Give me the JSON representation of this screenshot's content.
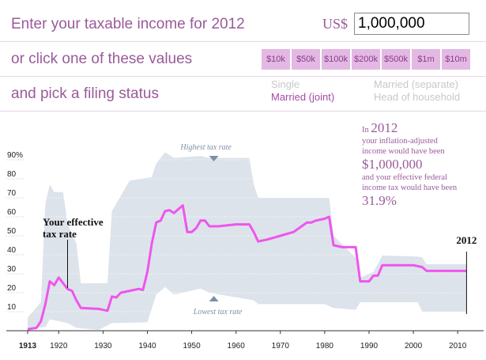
{
  "controls": {
    "prompt_income": "Enter your taxable income for 2012",
    "currency": "US$",
    "income_value": "1,000,000",
    "prompt_click": "or click one of these values",
    "presets": [
      "$10k",
      "$50k",
      "$100k",
      "$200k",
      "$500k",
      "$1m",
      "$10m"
    ],
    "prompt_status": "and pick a filing status",
    "statuses": [
      {
        "label": "Single",
        "active": false
      },
      {
        "label": "Married (joint)",
        "active": true
      },
      {
        "label": "Married (separate)",
        "active": false
      },
      {
        "label": "Head of household",
        "active": false
      }
    ],
    "colors": {
      "accent": "#9a5a9a",
      "preset_bg": "#e3b9e3",
      "active_status": "#a64aa6",
      "inactive_status": "#c8c8c8"
    }
  },
  "info": {
    "in_text": "In",
    "year": "2012",
    "line1": "your inflation-adjusted",
    "line2": "income would have been",
    "income": "$1,000,000",
    "line3": "and your effective federal",
    "line4": "income tax would have been",
    "rate": "31.9%"
  },
  "chart_data": {
    "type": "area",
    "xlim": [
      1913,
      2013
    ],
    "ylim": [
      0,
      95
    ],
    "x_ticks": [
      1913,
      1920,
      1930,
      1940,
      1950,
      1960,
      1970,
      1980,
      1990,
      2000,
      2010
    ],
    "y_ticks": [
      {
        "value": 10,
        "label": "10"
      },
      {
        "value": 20,
        "label": "20"
      },
      {
        "value": 30,
        "label": "30"
      },
      {
        "value": 40,
        "label": "40"
      },
      {
        "value": 50,
        "label": "50"
      },
      {
        "value": 60,
        "label": "60"
      },
      {
        "value": 70,
        "label": "70"
      },
      {
        "value": 80,
        "label": "80"
      },
      {
        "value": 90,
        "label": "90%"
      }
    ],
    "band_labels": {
      "top": "Highest tax rate",
      "bottom": "Lowest tax rate"
    },
    "annotation": {
      "line1": "Your effective",
      "line2": "tax rate",
      "year": 1922
    },
    "end_label": {
      "text": "2012",
      "year": 2012
    },
    "colors": {
      "band": "#dde3ea",
      "line": "#ee55ee",
      "axis": "#333333"
    },
    "highest_rate": [
      [
        1913,
        7
      ],
      [
        1916,
        15
      ],
      [
        1917,
        67
      ],
      [
        1918,
        77
      ],
      [
        1919,
        73
      ],
      [
        1921,
        73
      ],
      [
        1922,
        56
      ],
      [
        1924,
        46
      ],
      [
        1925,
        25
      ],
      [
        1931,
        25
      ],
      [
        1932,
        63
      ],
      [
        1936,
        79
      ],
      [
        1941,
        81
      ],
      [
        1942,
        88
      ],
      [
        1944,
        94
      ],
      [
        1946,
        91
      ],
      [
        1952,
        92
      ],
      [
        1954,
        91
      ],
      [
        1963,
        91
      ],
      [
        1964,
        77
      ],
      [
        1965,
        70
      ],
      [
        1981,
        70
      ],
      [
        1982,
        50
      ],
      [
        1987,
        38.5
      ],
      [
        1988,
        28
      ],
      [
        1991,
        31
      ],
      [
        1993,
        39.6
      ],
      [
        2001,
        39.1
      ],
      [
        2002,
        38.6
      ],
      [
        2003,
        35
      ],
      [
        2012,
        35
      ]
    ],
    "lowest_rate": [
      [
        1913,
        1
      ],
      [
        1917,
        2
      ],
      [
        1918,
        6
      ],
      [
        1922,
        4
      ],
      [
        1924,
        1.5
      ],
      [
        1929,
        0.4
      ],
      [
        1932,
        4
      ],
      [
        1940,
        4.4
      ],
      [
        1942,
        19
      ],
      [
        1944,
        23
      ],
      [
        1946,
        19
      ],
      [
        1952,
        22.2
      ],
      [
        1954,
        20
      ],
      [
        1964,
        16
      ],
      [
        1965,
        14
      ],
      [
        1970,
        14
      ],
      [
        1979,
        14
      ],
      [
        1980,
        14
      ],
      [
        1982,
        12
      ],
      [
        1987,
        11
      ],
      [
        1988,
        15
      ],
      [
        2001,
        15
      ],
      [
        2002,
        10
      ],
      [
        2012,
        10
      ]
    ],
    "effective_rate": [
      [
        1913,
        0.8
      ],
      [
        1915,
        1.5
      ],
      [
        1916,
        5
      ],
      [
        1917,
        14
      ],
      [
        1918,
        26
      ],
      [
        1919,
        24
      ],
      [
        1920,
        28
      ],
      [
        1921,
        25
      ],
      [
        1922,
        22
      ],
      [
        1923,
        21
      ],
      [
        1924,
        16
      ],
      [
        1925,
        12
      ],
      [
        1929,
        11.5
      ],
      [
        1931,
        10.5
      ],
      [
        1932,
        18
      ],
      [
        1933,
        17.5
      ],
      [
        1934,
        20
      ],
      [
        1936,
        21
      ],
      [
        1938,
        22
      ],
      [
        1939,
        21.5
      ],
      [
        1940,
        31
      ],
      [
        1941,
        46
      ],
      [
        1942,
        57
      ],
      [
        1943,
        58
      ],
      [
        1944,
        63
      ],
      [
        1945,
        63.5
      ],
      [
        1946,
        62
      ],
      [
        1948,
        66
      ],
      [
        1949,
        52
      ],
      [
        1950,
        52
      ],
      [
        1951,
        54
      ],
      [
        1952,
        58
      ],
      [
        1953,
        58
      ],
      [
        1954,
        55
      ],
      [
        1956,
        55
      ],
      [
        1960,
        56
      ],
      [
        1963,
        56
      ],
      [
        1964,
        52
      ],
      [
        1965,
        47
      ],
      [
        1967,
        48
      ],
      [
        1970,
        50
      ],
      [
        1973,
        52
      ],
      [
        1976,
        57
      ],
      [
        1977,
        57
      ],
      [
        1978,
        58
      ],
      [
        1980,
        59
      ],
      [
        1981,
        60
      ],
      [
        1982,
        45
      ],
      [
        1984,
        44
      ],
      [
        1987,
        44
      ],
      [
        1988,
        26
      ],
      [
        1990,
        26
      ],
      [
        1991,
        29
      ],
      [
        1992,
        29
      ],
      [
        1993,
        34.5
      ],
      [
        1994,
        34.5
      ],
      [
        2000,
        34.5
      ],
      [
        2001,
        34
      ],
      [
        2002,
        33.5
      ],
      [
        2003,
        31.5
      ],
      [
        2012,
        31.5
      ]
    ]
  }
}
